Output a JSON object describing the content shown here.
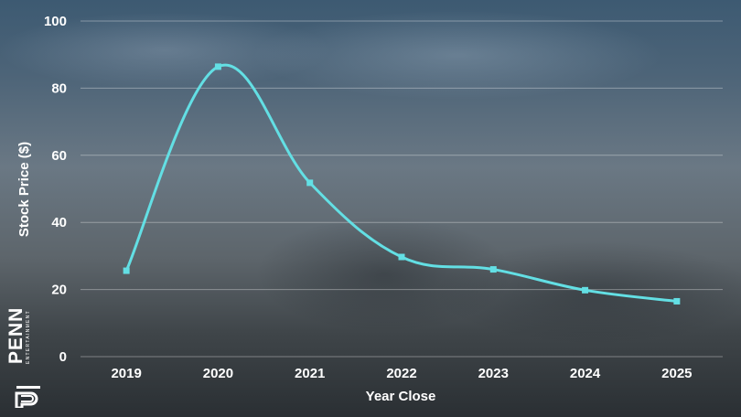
{
  "logo": {
    "name": "PENN",
    "subtitle": "ENTERTAINMENT"
  },
  "colors": {
    "line": "#63dfe4",
    "marker": "#63dfe4",
    "grid": "rgba(255,255,255,0.35)",
    "text": "#ffffff"
  },
  "chart_data": {
    "type": "line",
    "title": "",
    "xlabel": "Year Close",
    "ylabel": "Stock Price ($)",
    "categories": [
      "2019",
      "2020",
      "2021",
      "2022",
      "2023",
      "2024",
      "2025"
    ],
    "series": [
      {
        "values": [
          25.6,
          86.4,
          51.8,
          29.7,
          26.0,
          19.8,
          16.5
        ]
      }
    ],
    "ylim": [
      0,
      100
    ],
    "yticks": [
      0,
      20,
      40,
      60,
      80,
      100
    ],
    "grid": true,
    "smooth": true
  }
}
